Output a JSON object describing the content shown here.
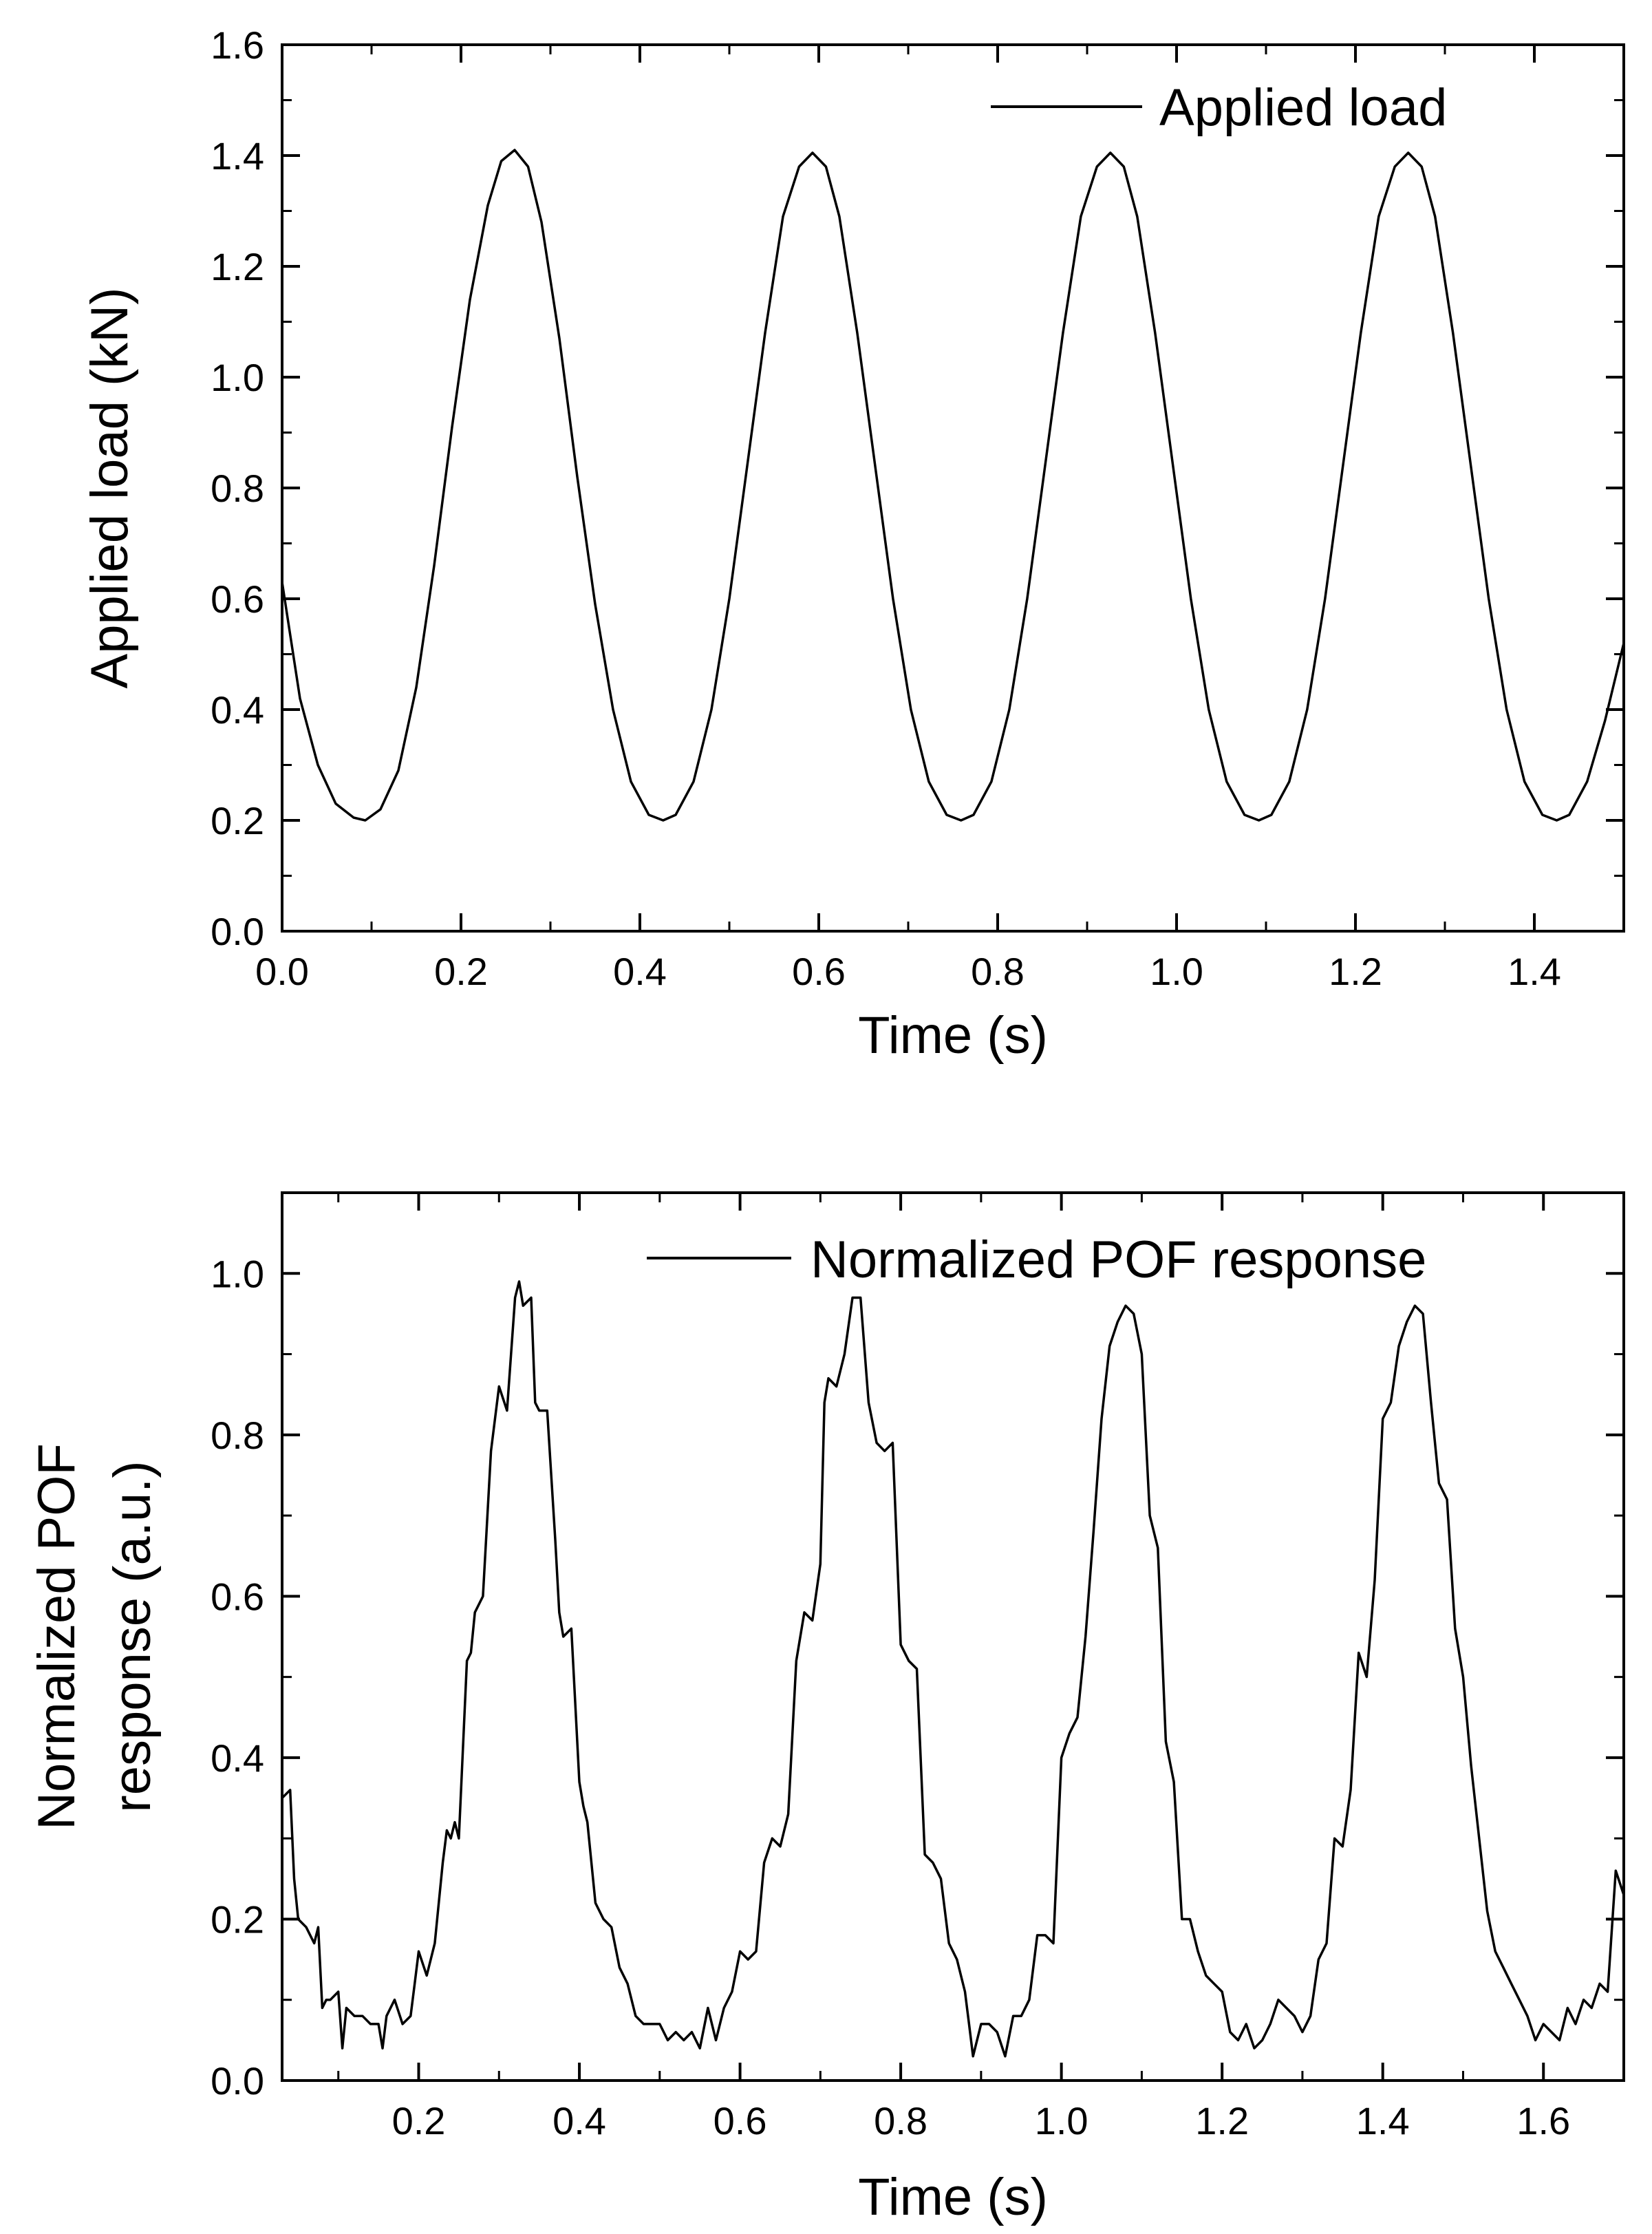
{
  "chart_data": [
    {
      "type": "line",
      "title": "",
      "xlabel": "Time (s)",
      "ylabel": "Applied load (kN)",
      "xlim": [
        0.0,
        1.5
      ],
      "ylim": [
        0.0,
        1.6
      ],
      "x_ticks": [
        "0.0",
        "0.2",
        "0.4",
        "0.6",
        "0.8",
        "1.0",
        "1.2",
        "1.4"
      ],
      "y_ticks": [
        "0.0",
        "0.2",
        "0.4",
        "0.6",
        "0.8",
        "1.0",
        "1.2",
        "1.4",
        "1.6"
      ],
      "legend": {
        "label": "Applied load",
        "position": "top-right"
      },
      "grid": false,
      "series": [
        {
          "name": "Applied load",
          "x": [
            0.0,
            0.02,
            0.04,
            0.06,
            0.08,
            0.093,
            0.11,
            0.13,
            0.15,
            0.17,
            0.19,
            0.21,
            0.23,
            0.245,
            0.26,
            0.275,
            0.29,
            0.31,
            0.33,
            0.35,
            0.37,
            0.39,
            0.41,
            0.426,
            0.44,
            0.46,
            0.48,
            0.5,
            0.52,
            0.54,
            0.56,
            0.578,
            0.593,
            0.608,
            0.623,
            0.643,
            0.663,
            0.683,
            0.703,
            0.723,
            0.743,
            0.759,
            0.773,
            0.793,
            0.813,
            0.833,
            0.853,
            0.873,
            0.893,
            0.911,
            0.926,
            0.941,
            0.956,
            0.976,
            0.996,
            1.016,
            1.036,
            1.056,
            1.076,
            1.092,
            1.106,
            1.126,
            1.146,
            1.166,
            1.186,
            1.206,
            1.226,
            1.244,
            1.259,
            1.274,
            1.289,
            1.309,
            1.329,
            1.349,
            1.369,
            1.389,
            1.409,
            1.425,
            1.439,
            1.459,
            1.479,
            1.5
          ],
          "y": [
            0.63,
            0.42,
            0.3,
            0.23,
            0.205,
            0.2,
            0.22,
            0.29,
            0.44,
            0.66,
            0.91,
            1.14,
            1.31,
            1.39,
            1.41,
            1.38,
            1.28,
            1.07,
            0.82,
            0.59,
            0.4,
            0.27,
            0.21,
            0.2,
            0.21,
            0.27,
            0.4,
            0.6,
            0.84,
            1.08,
            1.29,
            1.38,
            1.405,
            1.38,
            1.29,
            1.08,
            0.84,
            0.6,
            0.4,
            0.27,
            0.21,
            0.2,
            0.21,
            0.27,
            0.4,
            0.6,
            0.84,
            1.08,
            1.29,
            1.38,
            1.405,
            1.38,
            1.29,
            1.08,
            0.84,
            0.6,
            0.4,
            0.27,
            0.21,
            0.2,
            0.21,
            0.27,
            0.4,
            0.6,
            0.84,
            1.08,
            1.29,
            1.38,
            1.405,
            1.38,
            1.29,
            1.08,
            0.84,
            0.6,
            0.4,
            0.27,
            0.21,
            0.2,
            0.21,
            0.27,
            0.38,
            0.52
          ]
        }
      ]
    },
    {
      "type": "line",
      "title": "",
      "xlabel": "Time (s)",
      "ylabel_lines": [
        "Normalized POF",
        "response (a.u.)"
      ],
      "xlim": [
        0.03,
        1.7
      ],
      "ylim": [
        0.0,
        1.1
      ],
      "x_ticks": [
        "0.2",
        "0.4",
        "0.6",
        "0.8",
        "1.0",
        "1.2",
        "1.4",
        "1.6"
      ],
      "y_ticks": [
        "0.0",
        "0.2",
        "0.4",
        "0.6",
        "0.8",
        "1.0"
      ],
      "legend": {
        "label": "Normalized POF response",
        "position": "top-right"
      },
      "grid": false,
      "series": [
        {
          "name": "Normalized POF response",
          "x": [
            0.03,
            0.04,
            0.045,
            0.05,
            0.06,
            0.07,
            0.075,
            0.08,
            0.085,
            0.09,
            0.1,
            0.105,
            0.11,
            0.12,
            0.13,
            0.14,
            0.15,
            0.155,
            0.16,
            0.17,
            0.18,
            0.19,
            0.195,
            0.2,
            0.21,
            0.22,
            0.23,
            0.235,
            0.24,
            0.245,
            0.25,
            0.26,
            0.265,
            0.27,
            0.28,
            0.29,
            0.3,
            0.31,
            0.32,
            0.325,
            0.33,
            0.34,
            0.345,
            0.35,
            0.36,
            0.37,
            0.375,
            0.38,
            0.39,
            0.4,
            0.405,
            0.41,
            0.42,
            0.43,
            0.44,
            0.45,
            0.46,
            0.47,
            0.48,
            0.49,
            0.5,
            0.51,
            0.52,
            0.53,
            0.54,
            0.55,
            0.56,
            0.57,
            0.58,
            0.59,
            0.6,
            0.61,
            0.62,
            0.63,
            0.64,
            0.65,
            0.66,
            0.67,
            0.68,
            0.69,
            0.7,
            0.705,
            0.71,
            0.72,
            0.73,
            0.74,
            0.75,
            0.76,
            0.77,
            0.78,
            0.79,
            0.8,
            0.81,
            0.82,
            0.83,
            0.84,
            0.85,
            0.86,
            0.87,
            0.88,
            0.885,
            0.89,
            0.9,
            0.91,
            0.92,
            0.93,
            0.94,
            0.95,
            0.96,
            0.97,
            0.98,
            0.99,
            1.0,
            1.01,
            1.02,
            1.03,
            1.04,
            1.05,
            1.06,
            1.07,
            1.08,
            1.09,
            1.1,
            1.11,
            1.12,
            1.13,
            1.14,
            1.15,
            1.16,
            1.17,
            1.18,
            1.19,
            1.2,
            1.21,
            1.22,
            1.23,
            1.24,
            1.25,
            1.26,
            1.27,
            1.28,
            1.29,
            1.3,
            1.31,
            1.32,
            1.33,
            1.34,
            1.35,
            1.36,
            1.37,
            1.38,
            1.39,
            1.4,
            1.41,
            1.42,
            1.43,
            1.44,
            1.45,
            1.46,
            1.47,
            1.48,
            1.49,
            1.5,
            1.51,
            1.52,
            1.53,
            1.54,
            1.55,
            1.56,
            1.57,
            1.58,
            1.59,
            1.6,
            1.61,
            1.62,
            1.63,
            1.64,
            1.65,
            1.66,
            1.67,
            1.68,
            1.69,
            1.7
          ],
          "y": [
            0.35,
            0.36,
            0.25,
            0.2,
            0.19,
            0.17,
            0.19,
            0.09,
            0.1,
            0.1,
            0.11,
            0.04,
            0.09,
            0.08,
            0.08,
            0.07,
            0.07,
            0.04,
            0.08,
            0.1,
            0.07,
            0.08,
            0.12,
            0.16,
            0.13,
            0.17,
            0.27,
            0.31,
            0.3,
            0.32,
            0.3,
            0.52,
            0.53,
            0.58,
            0.6,
            0.78,
            0.86,
            0.83,
            0.97,
            0.99,
            0.96,
            0.97,
            0.84,
            0.83,
            0.83,
            0.67,
            0.58,
            0.55,
            0.56,
            0.37,
            0.34,
            0.32,
            0.22,
            0.2,
            0.19,
            0.14,
            0.12,
            0.08,
            0.07,
            0.07,
            0.07,
            0.05,
            0.06,
            0.05,
            0.06,
            0.04,
            0.09,
            0.05,
            0.09,
            0.11,
            0.16,
            0.15,
            0.16,
            0.27,
            0.3,
            0.29,
            0.33,
            0.52,
            0.58,
            0.57,
            0.64,
            0.84,
            0.87,
            0.86,
            0.9,
            0.97,
            0.97,
            0.84,
            0.79,
            0.78,
            0.79,
            0.54,
            0.52,
            0.51,
            0.28,
            0.27,
            0.25,
            0.17,
            0.15,
            0.11,
            0.07,
            0.03,
            0.07,
            0.07,
            0.06,
            0.03,
            0.08,
            0.08,
            0.1,
            0.18,
            0.18,
            0.17,
            0.4,
            0.43,
            0.45,
            0.55,
            0.68,
            0.82,
            0.91,
            0.94,
            0.96,
            0.95,
            0.9,
            0.7,
            0.66,
            0.42,
            0.37,
            0.2,
            0.2,
            0.16,
            0.13,
            0.12,
            0.11,
            0.06,
            0.05,
            0.07,
            0.04,
            0.05,
            0.07,
            0.1,
            0.09,
            0.08,
            0.06,
            0.08,
            0.15,
            0.17,
            0.3,
            0.29,
            0.36,
            0.53,
            0.5,
            0.62,
            0.82,
            0.84,
            0.91,
            0.94,
            0.96,
            0.95,
            0.84,
            0.74,
            0.72,
            0.56,
            0.5,
            0.39,
            0.3,
            0.21,
            0.16,
            0.14,
            0.12,
            0.1,
            0.08,
            0.05,
            0.07,
            0.06,
            0.05,
            0.09,
            0.07,
            0.1,
            0.09,
            0.12,
            0.11,
            0.26,
            0.23
          ]
        }
      ]
    }
  ]
}
